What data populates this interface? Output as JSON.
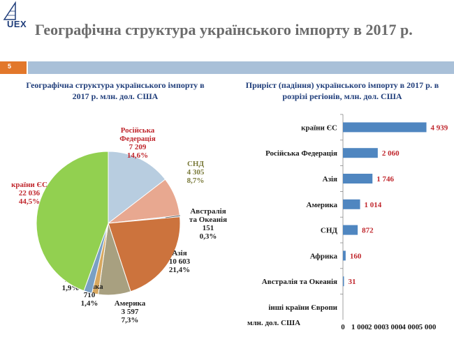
{
  "logo": {
    "text": "UEX"
  },
  "header": {
    "title": "Географічна структура українського імпорту в 2017 р.",
    "slide_number": "5"
  },
  "colors": {
    "accent": "#e2772a",
    "band": "#a9c0d8",
    "title_blue": "#1f3d7a",
    "label_red": "#c0272d",
    "bar_blue": "#4f86c0"
  },
  "chart_data": [
    {
      "type": "pie",
      "title": "Географічна структура українського імпорту в 2017 р. млн. дол. США",
      "title_line1": "Географічна структура українського імпорту в",
      "title_line2": "2017 р. млн. дол. США",
      "slices": [
        {
          "name": "Російська Федерація",
          "label_lines": [
            "Російська",
            "Федерація"
          ],
          "value": 7209,
          "value_text": "7 209",
          "share_text": "14,6%",
          "color": "#b8cde0",
          "label_color": "#c0272d"
        },
        {
          "name": "СНД",
          "label_lines": [
            "СНД"
          ],
          "value": 4305,
          "value_text": "4 305",
          "share_text": "8,7%",
          "color": "#e8a890",
          "label_color": "#7a7a3a"
        },
        {
          "name": "Австралія та Океанія",
          "label_lines": [
            "Австралія",
            "та Океанія"
          ],
          "value": 151,
          "value_text": "151",
          "share_text": "0,3%",
          "color": "#9bb8d4",
          "label_color": "#222222"
        },
        {
          "name": "Азія",
          "label_lines": [
            "Азія"
          ],
          "value": 10603,
          "value_text": "10 603",
          "share_text": "21,4%",
          "color": "#cc733d",
          "label_color": "#222222"
        },
        {
          "name": "Америка",
          "label_lines": [
            "Америка"
          ],
          "value": 3597,
          "value_text": "3 597",
          "share_text": "7,3%",
          "color": "#a8a080",
          "label_color": "#222222"
        },
        {
          "name": "Африка",
          "label_lines": [
            "Африка"
          ],
          "value": 710,
          "value_text": "710",
          "share_text": "1,4%",
          "color": "#d8a860",
          "label_color": "#222222"
        },
        {
          "name": "інші країни Європи",
          "label_lines": [
            "інші",
            "країни",
            "Європи"
          ],
          "value": 917,
          "value_text": "917",
          "share_text": "1,9%",
          "color": "#7aa0c4",
          "label_color": "#222222"
        },
        {
          "name": "країни ЄС",
          "label_lines": [
            "країни ЄС"
          ],
          "value": 22036,
          "value_text": "22 036",
          "share_text": "44,5%",
          "color": "#92d050",
          "label_color": "#c0272d"
        }
      ]
    },
    {
      "type": "bar",
      "orientation": "horizontal",
      "title": "Приріст (падіння) українського імпорту в 2017 р. в розрізі регіонів, млн. дол. США",
      "title_line1": "Приріст (падіння) українського імпорту в 2017 р. в",
      "title_line2": "розрізі регіонів, млн. дол. США",
      "categories": [
        "країни ЄС",
        "Російська Федерація",
        "Азія",
        "Америка",
        "СНД",
        "Африка",
        "Австралія та Океанія",
        "інші країни Європи"
      ],
      "values": [
        4939,
        2060,
        1746,
        1014,
        872,
        160,
        31,
        null
      ],
      "value_labels": [
        "4 939",
        "2 060",
        "1 746",
        "1 014",
        "872",
        "160",
        "31",
        ""
      ],
      "xlim": [
        0,
        5000
      ],
      "xticks": [
        "0",
        "1 000",
        "2 000",
        "3 000",
        "4 000",
        "5 000"
      ],
      "xlabel": "млн. дол. США",
      "bar_color": "#4f86c0",
      "label_color": "#c0272d"
    }
  ]
}
